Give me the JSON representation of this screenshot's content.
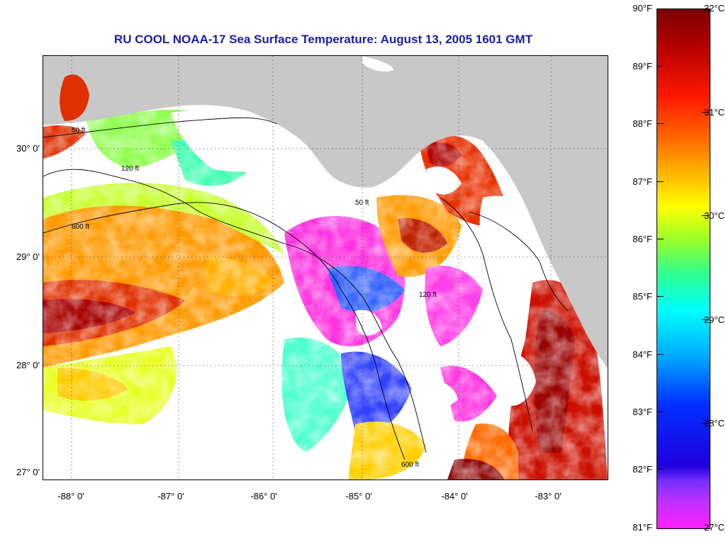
{
  "title": "RU COOL  NOAA-17  Sea Surface Temperature:  August 13, 2005 1601 GMT",
  "latitude_labels": [
    "30° 0'",
    "29° 0'",
    "28° 0'",
    "27° 0'"
  ],
  "longitude_labels": [
    "-88° 0'",
    "-87° 0'",
    "-86° 0'",
    "-85° 0'",
    "-84° 0'",
    "-83° 0'"
  ],
  "depth_contour_labels": [
    "50 ft",
    "120 ft",
    "600 ft",
    "50 ft",
    "120 ft",
    "600 ft"
  ],
  "colorbar": {
    "fahrenheit_labels": [
      "90°F",
      "89°F",
      "88°F",
      "87°F",
      "86°F",
      "85°F",
      "84°F",
      "83°F",
      "82°F",
      "81°F"
    ],
    "celsius_labels": [
      "32°C",
      "31°C",
      "30°C",
      "29°C",
      "28°C",
      "27°C"
    ]
  },
  "colors": {
    "land": "#c8c8c8",
    "cloud": "#ffffff",
    "title": "#1c1ca8",
    "warm": "#c00000",
    "cool": "#ff30e0"
  }
}
